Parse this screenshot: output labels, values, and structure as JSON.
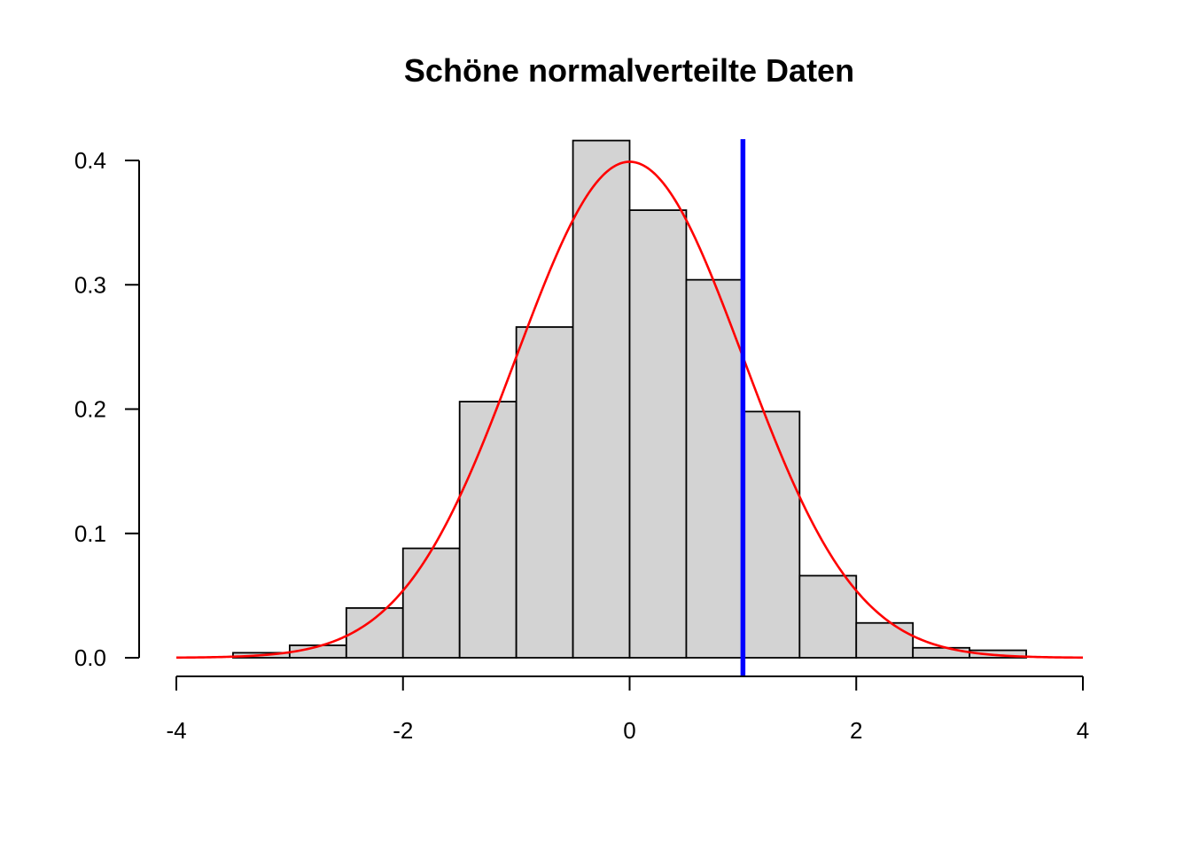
{
  "chart_data": {
    "type": "bar",
    "title": "Schöne normalverteilte Daten",
    "xlabel": "",
    "ylabel": "",
    "xlim": [
      -4,
      4
    ],
    "ylim": [
      0,
      0.4
    ],
    "x_ticks": [
      -4,
      -2,
      0,
      2,
      4
    ],
    "x_tick_labels": [
      "-4",
      "-2",
      "0",
      "2",
      "4"
    ],
    "y_ticks": [
      0,
      0.1,
      0.2,
      0.3,
      0.4
    ],
    "y_tick_labels": [
      "0.0",
      "0.1",
      "0.2",
      "0.3",
      "0.4"
    ],
    "bins": [
      {
        "x0": -3.5,
        "x1": -3.0,
        "density": 0.004
      },
      {
        "x0": -3.0,
        "x1": -2.5,
        "density": 0.01
      },
      {
        "x0": -2.5,
        "x1": -2.0,
        "density": 0.04
      },
      {
        "x0": -2.0,
        "x1": -1.5,
        "density": 0.088
      },
      {
        "x0": -1.5,
        "x1": -1.0,
        "density": 0.206
      },
      {
        "x0": -1.0,
        "x1": -0.5,
        "density": 0.266
      },
      {
        "x0": -0.5,
        "x1": 0.0,
        "density": 0.416
      },
      {
        "x0": 0.0,
        "x1": 0.5,
        "density": 0.36
      },
      {
        "x0": 0.5,
        "x1": 1.0,
        "density": 0.304
      },
      {
        "x0": 1.0,
        "x1": 1.5,
        "density": 0.198
      },
      {
        "x0": 1.5,
        "x1": 2.0,
        "density": 0.066
      },
      {
        "x0": 2.0,
        "x1": 2.5,
        "density": 0.028
      },
      {
        "x0": 2.5,
        "x1": 3.0,
        "density": 0.008
      },
      {
        "x0": 3.0,
        "x1": 3.5,
        "density": 0.006
      }
    ],
    "density_curve": {
      "distribution": "normal",
      "mean": 0,
      "sd": 1,
      "range": [
        -4,
        4
      ],
      "color": "#ff0000"
    },
    "vertical_line": {
      "x": 1,
      "color": "#0000ff"
    },
    "bar_fill": "#d3d3d3",
    "grid": false,
    "legend": "none"
  }
}
